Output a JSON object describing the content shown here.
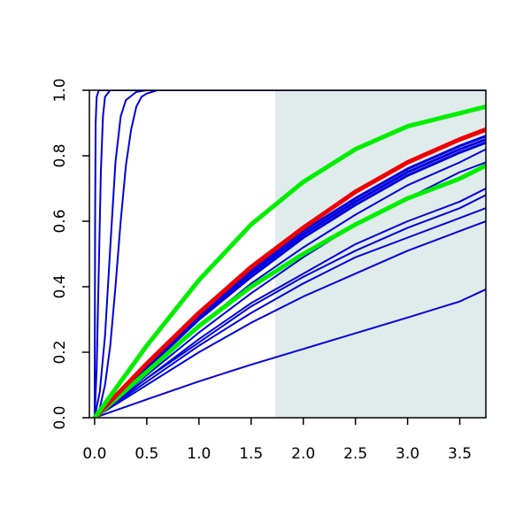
{
  "chart_data": {
    "type": "line",
    "title": "",
    "xlabel": "",
    "ylabel": "",
    "xlim": [
      -0.05,
      3.75
    ],
    "ylim": [
      0,
      1
    ],
    "grid": false,
    "shaded_region": {
      "x_from": 1.73,
      "x_to": 3.75,
      "color": "#e0ecec"
    },
    "x_ticks": [
      0,
      0.5,
      1,
      1.5,
      2,
      2.5,
      3,
      3.5
    ],
    "x_tick_labels": [
      "0.0",
      "0.5",
      "1.0",
      "1.5",
      "2.0",
      "2.5",
      "3.0",
      "3.5"
    ],
    "y_ticks": [
      0,
      0.2,
      0.4,
      0.6,
      0.8,
      1.0
    ],
    "y_tick_labels": [
      "0.0",
      "0.2",
      "0.4",
      "0.6",
      "0.8",
      "1.0"
    ],
    "colors": {
      "blue": "#0000dd",
      "green": "#00ee00",
      "red": "#ee0000",
      "axis": "#000000"
    },
    "series": [
      {
        "color": "blue",
        "weight": "thin",
        "x": [
          0,
          0.005,
          0.01,
          0.02,
          0.04,
          0.08,
          0.2,
          3.75
        ],
        "y": [
          0,
          0.6,
          0.9,
          0.98,
          1.0,
          1.0,
          1.0,
          1.0
        ]
      },
      {
        "color": "blue",
        "weight": "thin",
        "x": [
          0,
          0.02,
          0.04,
          0.06,
          0.08,
          0.1,
          0.15,
          0.3,
          3.75
        ],
        "y": [
          0,
          0.15,
          0.45,
          0.75,
          0.92,
          0.98,
          1.0,
          1.0,
          1.0
        ]
      },
      {
        "color": "blue",
        "weight": "thin",
        "x": [
          0,
          0.05,
          0.1,
          0.15,
          0.2,
          0.25,
          0.3,
          0.4,
          0.5,
          3.75
        ],
        "y": [
          0,
          0.08,
          0.25,
          0.52,
          0.78,
          0.92,
          0.97,
          0.995,
          1.0,
          1.0
        ]
      },
      {
        "color": "blue",
        "weight": "thin",
        "x": [
          0,
          0.05,
          0.1,
          0.15,
          0.2,
          0.25,
          0.3,
          0.35,
          0.4,
          0.45,
          0.5,
          0.6,
          3.75
        ],
        "y": [
          0,
          0.03,
          0.1,
          0.22,
          0.4,
          0.6,
          0.77,
          0.88,
          0.95,
          0.98,
          0.99,
          1.0,
          1.0
        ]
      },
      {
        "color": "blue",
        "weight": "thin",
        "x": [
          0,
          0.5,
          1,
          1.5,
          2,
          2.5,
          3,
          3.5,
          3.75
        ],
        "y": [
          0,
          0.056,
          0.111,
          0.162,
          0.21,
          0.258,
          0.306,
          0.355,
          0.392
        ]
      },
      {
        "color": "blue",
        "weight": "thin",
        "x": [
          0,
          0.5,
          1,
          1.5,
          2,
          2.5,
          3,
          3.5,
          3.75
        ],
        "y": [
          0,
          0.1,
          0.2,
          0.29,
          0.37,
          0.44,
          0.51,
          0.57,
          0.6
        ]
      },
      {
        "color": "blue",
        "weight": "thin",
        "x": [
          0,
          0.5,
          1,
          1.5,
          2,
          2.5,
          3,
          3.5,
          3.75
        ],
        "y": [
          0,
          0.11,
          0.22,
          0.32,
          0.41,
          0.49,
          0.55,
          0.61,
          0.64
        ]
      },
      {
        "color": "blue",
        "weight": "thin",
        "x": [
          0,
          0.5,
          1,
          1.5,
          2,
          2.5,
          3,
          3.5,
          3.75
        ],
        "y": [
          0,
          0.12,
          0.23,
          0.34,
          0.43,
          0.51,
          0.58,
          0.64,
          0.68
        ]
      },
      {
        "color": "blue",
        "weight": "thin",
        "x": [
          0,
          0.5,
          1,
          1.5,
          2,
          2.5,
          3,
          3.5,
          3.75
        ],
        "y": [
          0,
          0.12,
          0.24,
          0.35,
          0.44,
          0.53,
          0.6,
          0.66,
          0.7
        ]
      },
      {
        "color": "blue",
        "weight": "thin",
        "x": [
          0,
          0.5,
          1,
          1.5,
          2,
          2.5,
          3,
          3.5,
          3.75
        ],
        "y": [
          0,
          0.13,
          0.26,
          0.38,
          0.49,
          0.59,
          0.67,
          0.75,
          0.78
        ]
      },
      {
        "color": "blue",
        "weight": "thin",
        "x": [
          0,
          0.5,
          1,
          1.5,
          2,
          2.5,
          3,
          3.5,
          3.75
        ],
        "y": [
          0,
          0.14,
          0.28,
          0.41,
          0.52,
          0.62,
          0.71,
          0.78,
          0.82
        ]
      },
      {
        "color": "blue",
        "weight": "thick",
        "x": [
          0,
          0.5,
          1,
          1.5,
          2,
          2.5,
          3,
          3.5,
          3.75
        ],
        "y": [
          0,
          0.15,
          0.3,
          0.43,
          0.55,
          0.65,
          0.74,
          0.81,
          0.84
        ]
      },
      {
        "color": "blue",
        "weight": "thick",
        "x": [
          0,
          0.5,
          1,
          1.5,
          2,
          2.5,
          3,
          3.5,
          3.75
        ],
        "y": [
          0,
          0.155,
          0.31,
          0.44,
          0.56,
          0.66,
          0.75,
          0.82,
          0.85
        ]
      },
      {
        "color": "blue",
        "weight": "thick",
        "x": [
          0,
          0.5,
          1,
          1.5,
          2,
          2.5,
          3,
          3.5,
          3.75
        ],
        "y": [
          0,
          0.16,
          0.31,
          0.45,
          0.57,
          0.67,
          0.76,
          0.83,
          0.86
        ]
      },
      {
        "color": "green",
        "weight": "thick",
        "x": [
          0,
          0.5,
          1,
          1.5,
          2,
          2.5,
          3,
          3.5,
          3.75
        ],
        "y": [
          0,
          0.14,
          0.28,
          0.4,
          0.5,
          0.59,
          0.67,
          0.73,
          0.77
        ]
      },
      {
        "color": "red",
        "weight": "thick",
        "x": [
          0,
          0.5,
          1,
          1.5,
          2,
          2.5,
          3,
          3.5,
          3.75
        ],
        "y": [
          0,
          0.165,
          0.32,
          0.46,
          0.58,
          0.69,
          0.78,
          0.85,
          0.88
        ]
      },
      {
        "color": "green",
        "weight": "thick",
        "x": [
          0,
          0.5,
          1,
          1.5,
          2,
          2.5,
          3,
          3.5,
          3.75
        ],
        "y": [
          0,
          0.22,
          0.42,
          0.59,
          0.72,
          0.82,
          0.89,
          0.93,
          0.95
        ]
      }
    ]
  }
}
